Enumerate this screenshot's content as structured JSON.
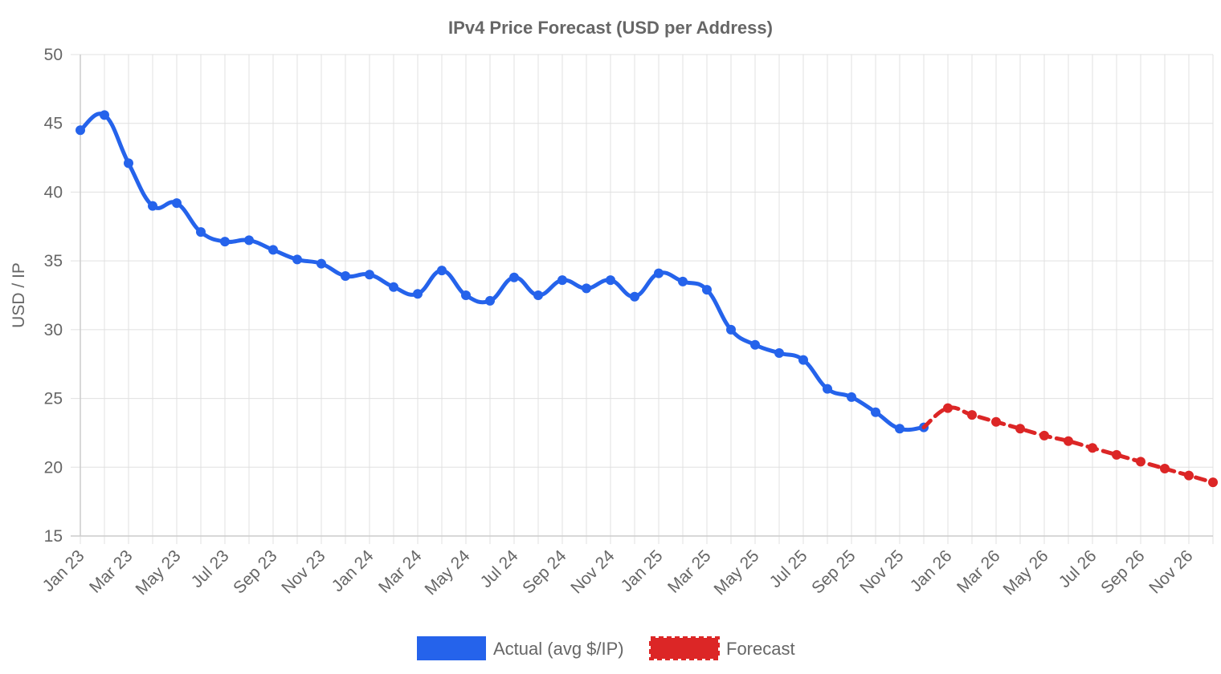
{
  "chart_data": {
    "type": "line",
    "title": "IPv4 Price Forecast (USD per Address)",
    "xlabel": "",
    "ylabel": "USD / IP",
    "ylim": [
      15,
      50
    ],
    "yticks": [
      "15",
      "20",
      "25",
      "30",
      "35",
      "40",
      "45",
      "50"
    ],
    "x_tick_labels": [
      "Jan 23",
      "Mar 23",
      "May 23",
      "Jul 23",
      "Sep 23",
      "Nov 23",
      "Jan 24",
      "Mar 24",
      "May 24",
      "Jul 24",
      "Sep 24",
      "Nov 24",
      "Jan 25",
      "Mar 25",
      "May 25",
      "Jul 25",
      "Sep 25",
      "Nov 25",
      "Jan 26",
      "Mar 26",
      "May 26",
      "Jul 26",
      "Sep 26",
      "Nov 26"
    ],
    "grid": true,
    "legend_position": "bottom",
    "colors": {
      "actual": "#2563eb",
      "forecast": "#dc2626"
    },
    "series": [
      {
        "name": "Actual (avg $/IP)",
        "style": "solid",
        "x": [
          "2023-01",
          "2023-02",
          "2023-03",
          "2023-04",
          "2023-05",
          "2023-06",
          "2023-07",
          "2023-08",
          "2023-09",
          "2023-10",
          "2023-11",
          "2023-12",
          "2024-01",
          "2024-02",
          "2024-03",
          "2024-04",
          "2024-05",
          "2024-06",
          "2024-07",
          "2024-08",
          "2024-09",
          "2024-10",
          "2024-11",
          "2024-12",
          "2025-01",
          "2025-02",
          "2025-03",
          "2025-04",
          "2025-05",
          "2025-06",
          "2025-07",
          "2025-08",
          "2025-09",
          "2025-10",
          "2025-11",
          "2025-12"
        ],
        "values": [
          44.5,
          45.6,
          42.1,
          39.0,
          39.2,
          37.1,
          36.4,
          36.5,
          35.8,
          35.1,
          34.8,
          33.9,
          34.0,
          33.1,
          32.6,
          34.3,
          32.5,
          32.1,
          33.8,
          32.5,
          33.6,
          33.0,
          33.6,
          32.4,
          34.1,
          33.5,
          32.9,
          30.0,
          28.9,
          28.3,
          27.8,
          25.7,
          25.1,
          24.0,
          22.8,
          22.9
        ]
      },
      {
        "name": "Forecast",
        "style": "dashed",
        "x": [
          "2025-12",
          "2026-01",
          "2026-02",
          "2026-03",
          "2026-04",
          "2026-05",
          "2026-06",
          "2026-07",
          "2026-08",
          "2026-09",
          "2026-10",
          "2026-11",
          "2026-12"
        ],
        "values": [
          22.9,
          24.3,
          23.8,
          23.3,
          22.8,
          22.3,
          21.9,
          21.4,
          20.9,
          20.4,
          19.9,
          19.4,
          18.9
        ],
        "markers": [
          false,
          true,
          true,
          true,
          true,
          true,
          true,
          true,
          true,
          true,
          true,
          true,
          true
        ]
      }
    ]
  }
}
